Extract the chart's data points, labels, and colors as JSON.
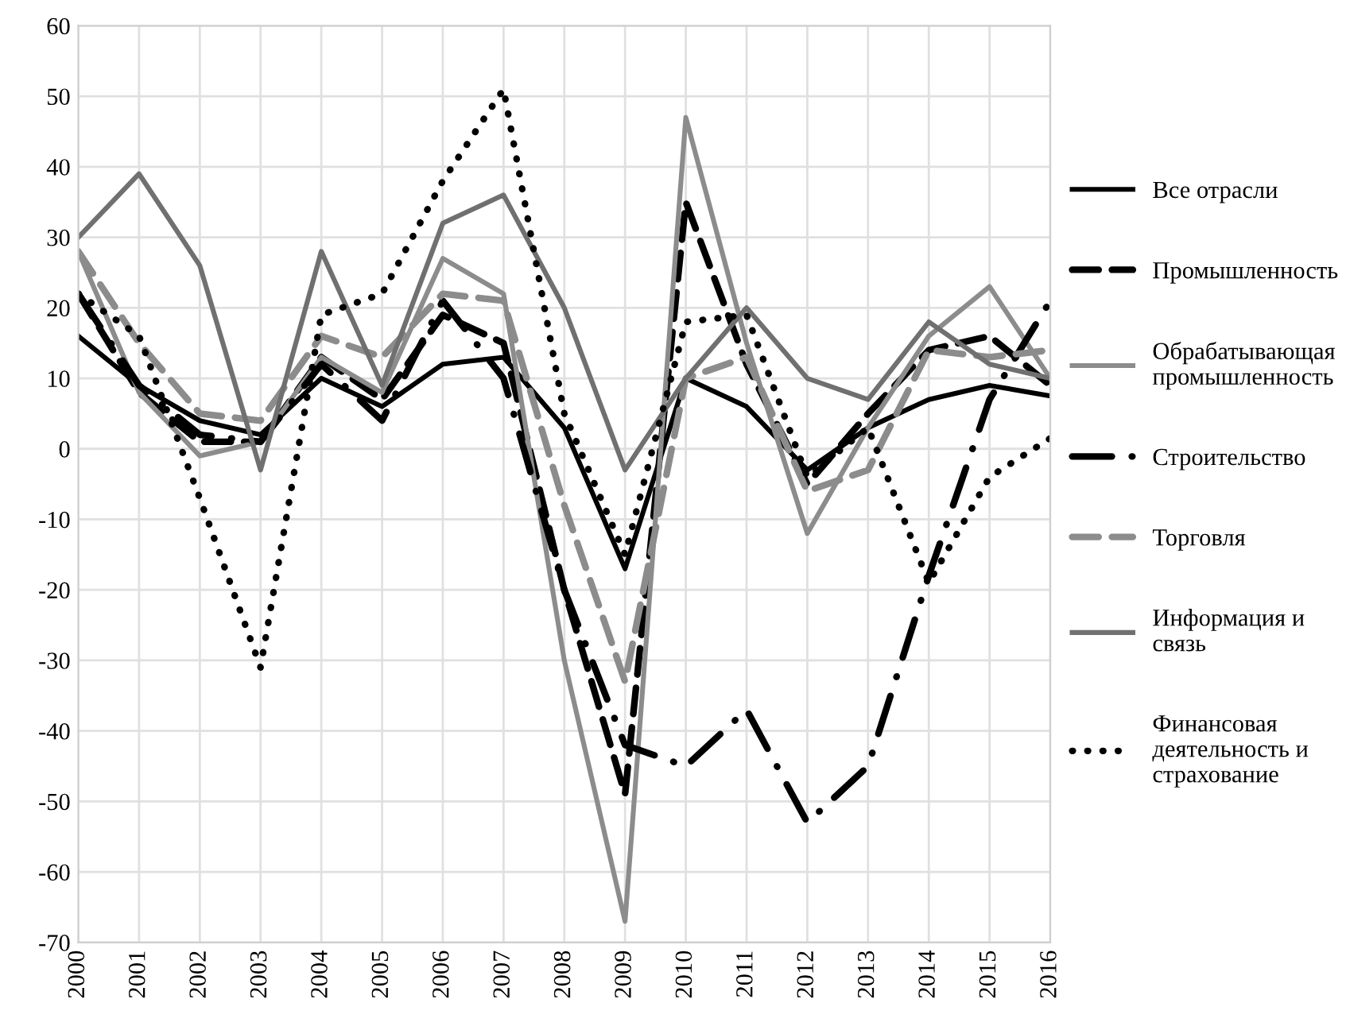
{
  "chart_data": {
    "type": "line",
    "x": [
      2000,
      2001,
      2002,
      2003,
      2004,
      2005,
      2006,
      2007,
      2008,
      2009,
      2010,
      2011,
      2012,
      2013,
      2014,
      2015,
      2016
    ],
    "xlim": [
      2000,
      2016
    ],
    "xticks": [
      2000,
      2001,
      2002,
      2003,
      2004,
      2005,
      2006,
      2007,
      2008,
      2009,
      2010,
      2011,
      2012,
      2013,
      2014,
      2015,
      2016
    ],
    "ylim": [
      -70,
      60
    ],
    "yticks": [
      -70,
      -60,
      -50,
      -40,
      -30,
      -20,
      -10,
      0,
      10,
      20,
      30,
      40,
      50,
      60
    ],
    "grid": true,
    "legend": "right",
    "series": [
      {
        "name": "Все отрасли",
        "color": "#000000",
        "line_style": "solid",
        "values": [
          16,
          9,
          4,
          2,
          10,
          6,
          12,
          13,
          3,
          -17,
          10,
          6,
          -3,
          3,
          7,
          9,
          7.5
        ]
      },
      {
        "name": "Промышленность",
        "color": "#000000",
        "line_style": "dashed",
        "values": [
          22,
          8,
          1,
          1,
          13,
          7,
          19,
          15,
          -20,
          -49,
          35,
          12,
          -5,
          5,
          14,
          16,
          9
        ]
      },
      {
        "name": "Обрабатывающая\nпромышленность",
        "color": "#8c8c8c",
        "line_style": "solid",
        "values": [
          28,
          8,
          -1,
          1,
          13,
          8,
          27,
          22,
          -30,
          -67,
          47,
          15,
          -12,
          3,
          16,
          23,
          10
        ]
      },
      {
        "name": "Строительство",
        "color": "#000000",
        "line_style": "dashdot",
        "values": [
          22,
          9,
          2,
          1,
          12,
          4,
          21,
          10,
          -20,
          -42,
          -45,
          -37,
          -53,
          -45,
          -18,
          7,
          21
        ]
      },
      {
        "name": "Торговля",
        "color": "#8c8c8c",
        "line_style": "dashed",
        "values": [
          28,
          15,
          5,
          4,
          16,
          13,
          22,
          21,
          -8,
          -33,
          10,
          13,
          -6,
          -3,
          14,
          13,
          14
        ]
      },
      {
        "name": "Информация и\nсвязь",
        "color": "#707070",
        "line_style": "solid",
        "values": [
          30,
          39,
          26,
          -3,
          28,
          9,
          32,
          36,
          20,
          -3,
          10,
          20,
          10,
          7,
          18,
          12,
          10
        ]
      },
      {
        "name": "Финансовая\nдеятельность и\nстрахование",
        "color": "#000000",
        "line_style": "dotted",
        "values": [
          22,
          16,
          -7,
          -31,
          19,
          22,
          38,
          51,
          5,
          -15,
          18,
          19,
          -4,
          3,
          -19,
          -4,
          1.5
        ]
      }
    ]
  }
}
